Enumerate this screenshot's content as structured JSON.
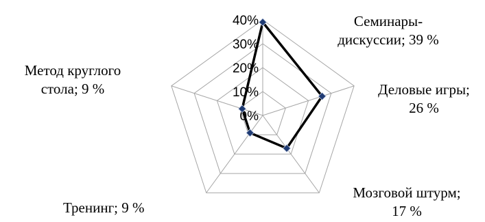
{
  "chart_data": {
    "type": "radar",
    "categories": [
      "Семинары-дискуссии",
      "Деловые игры",
      "Мозговой штурм",
      "Тренинг",
      "Метод круглого стола"
    ],
    "values": [
      39,
      26,
      17,
      9,
      9
    ],
    "value_unit": "%",
    "rlim": [
      0,
      40
    ],
    "ticks": [
      "0%",
      "10%",
      "20%",
      "30%",
      "40%"
    ],
    "grid": true,
    "legend": "none",
    "line_color": "#000000",
    "marker_color": "#1f3b73",
    "grid_color": "#a6a6a6"
  },
  "labels": {
    "seminars": {
      "line1": "Семинары-",
      "line2": "дискуссии;  39 %"
    },
    "business_games": {
      "line1": "Деловые игры;",
      "line2": "26 %"
    },
    "brainstorm": {
      "line1": "Мозговой штурм;",
      "line2": "17 %"
    },
    "training": {
      "line1": "Тренинг; 9 %"
    },
    "round_table": {
      "line1": "Метод круглого",
      "line2": "стола; 9 %"
    }
  }
}
